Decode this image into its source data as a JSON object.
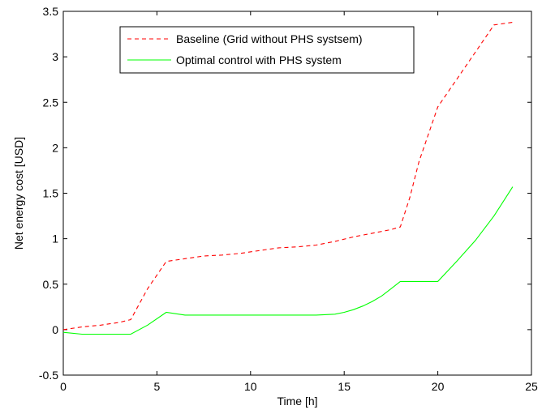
{
  "chart_data": {
    "type": "line",
    "title": "",
    "xlabel": "Time [h]",
    "ylabel": "Net energy cost [USD]",
    "xlim": [
      0,
      25
    ],
    "ylim": [
      -0.5,
      3.5
    ],
    "xticks": [
      "0",
      "5",
      "10",
      "15",
      "20",
      "25"
    ],
    "yticks": [
      "-0.5",
      "0",
      "0.5",
      "1",
      "1.5",
      "2",
      "2.5",
      "3",
      "3.5"
    ],
    "grid": false,
    "legend_position": "top-center",
    "series": [
      {
        "name": "Baseline (Grid without PHS systsem)",
        "color": "#ff0000",
        "style": "dashed",
        "x": [
          0,
          1,
          2,
          3,
          3.6,
          4.5,
          5.5,
          6.5,
          7.5,
          8.5,
          9.5,
          10.5,
          11.5,
          12.5,
          13.5,
          14.5,
          15.5,
          16.5,
          17.5,
          18,
          18.5,
          19,
          20,
          21,
          22,
          23,
          24
        ],
        "y": [
          0,
          0.03,
          0.05,
          0.08,
          0.11,
          0.45,
          0.75,
          0.78,
          0.81,
          0.82,
          0.84,
          0.87,
          0.9,
          0.91,
          0.93,
          0.97,
          1.02,
          1.06,
          1.1,
          1.13,
          1.45,
          1.85,
          2.45,
          2.75,
          3.05,
          3.35,
          3.38
        ]
      },
      {
        "name": "Optimal control with PHS system",
        "color": "#00ff00",
        "style": "solid",
        "x": [
          0,
          1,
          2,
          3,
          3.6,
          4.5,
          5.5,
          6.5,
          7.5,
          8.5,
          9.5,
          10.5,
          11.5,
          12.5,
          13.5,
          14.5,
          15,
          15.5,
          16,
          16.5,
          17,
          17.5,
          18,
          19,
          20,
          21,
          22,
          23,
          24
        ],
        "y": [
          -0.03,
          -0.05,
          -0.05,
          -0.05,
          -0.05,
          0.05,
          0.19,
          0.16,
          0.16,
          0.16,
          0.16,
          0.16,
          0.16,
          0.16,
          0.16,
          0.17,
          0.19,
          0.22,
          0.26,
          0.31,
          0.37,
          0.45,
          0.53,
          0.53,
          0.53,
          0.75,
          0.98,
          1.25,
          1.57
        ]
      }
    ]
  }
}
